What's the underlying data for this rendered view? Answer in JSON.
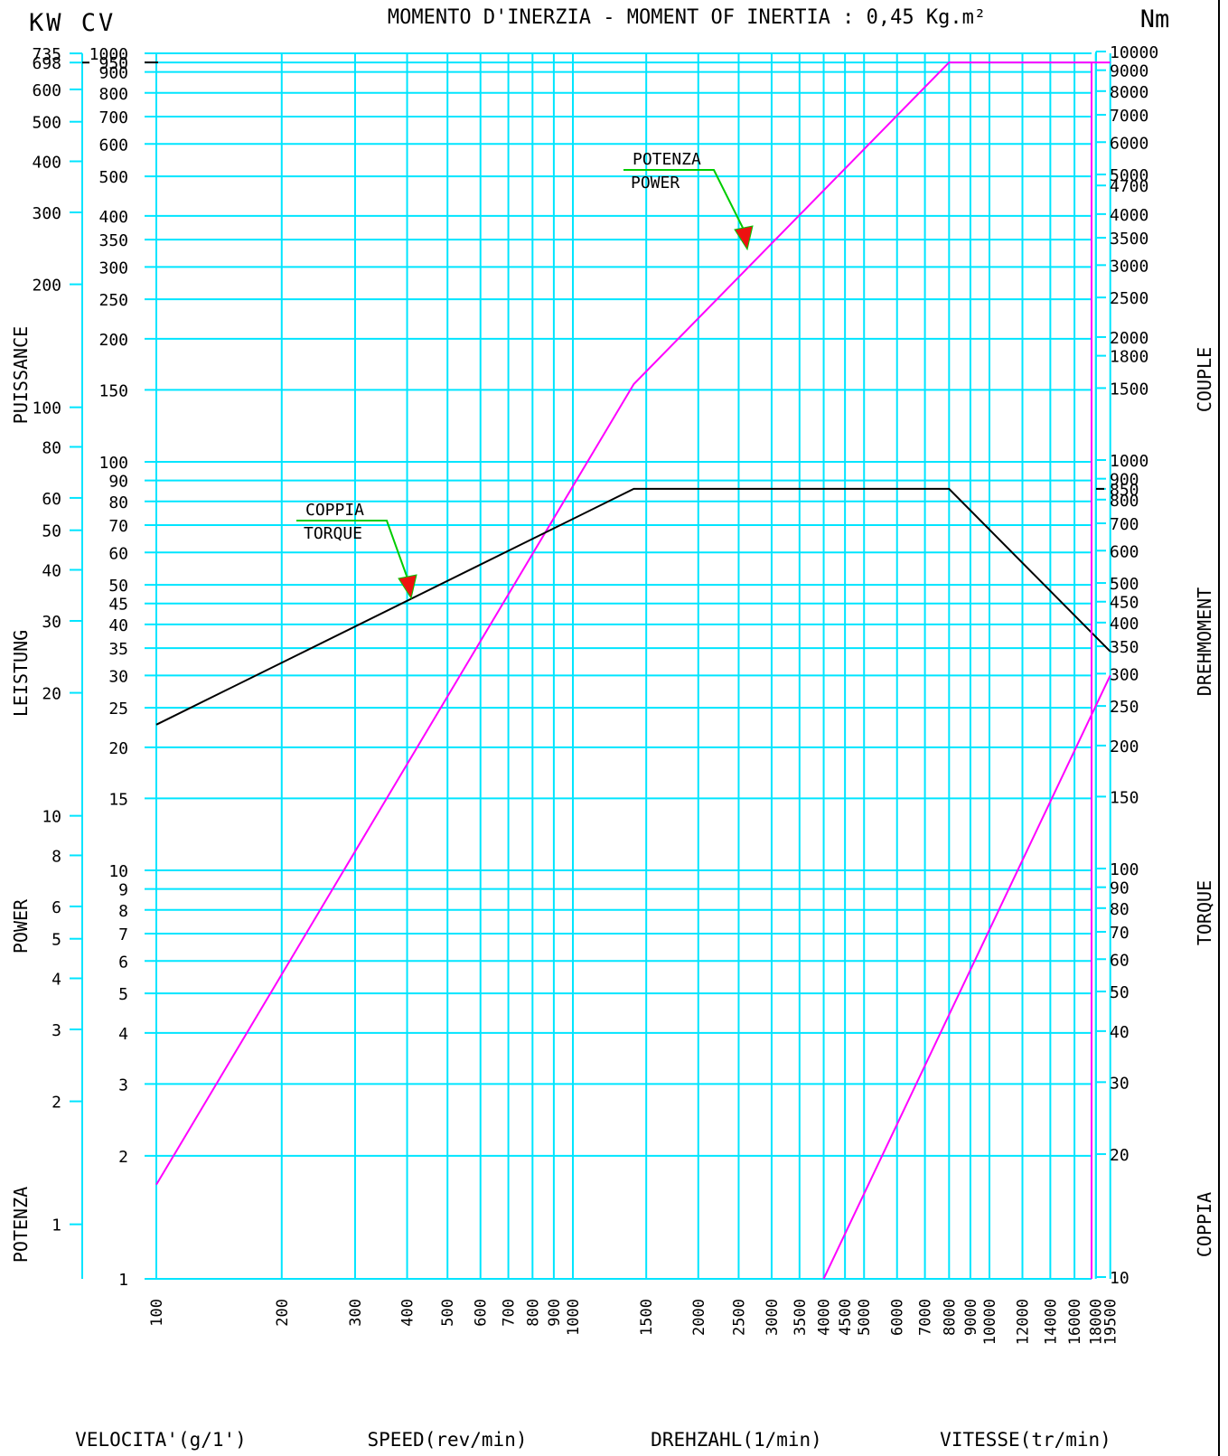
{
  "header": {
    "left_units": "KW CV",
    "title": "MOMENTO D'INERZIA - MOMENT OF INERTIA : 0,45 Kg.m²",
    "right_unit": "Nm"
  },
  "axis_names": {
    "left": [
      "POTENZA",
      "POWER",
      "LEISTUNG",
      "PUISSANCE"
    ],
    "right": [
      "COPPIA",
      "TORQUE",
      "DREHMOMENT",
      "COUPLE"
    ],
    "bottom": [
      "VELOCITA'(g/1')",
      "SPEED(rev/min)",
      "DREHZAHL(1/min)",
      "VITESSE(tr/min)"
    ]
  },
  "colors": {
    "grid": "#00e5ff",
    "power": "#ff00ff",
    "torque": "#000000",
    "callout": "#00cc00",
    "arrow_head": "#ee1111"
  },
  "chart_data": {
    "type": "line",
    "scale": "log-log",
    "x": {
      "range": [
        100,
        19500
      ],
      "tick_labels": [
        "100",
        "200",
        "300",
        "400",
        "500",
        "600",
        "700",
        "800",
        "900",
        "1000",
        "1500",
        "2000",
        "2500",
        "3000",
        "3500",
        "4000",
        "4500",
        "5000",
        "6000",
        "7000",
        "8000",
        "9000",
        "10000",
        "12000",
        "14000",
        "16000",
        "18000",
        "19500"
      ]
    },
    "kw_axis": {
      "ticks": [
        "1",
        "2",
        "3",
        "4",
        "5",
        "6",
        "8",
        "10",
        "20",
        "30",
        "40",
        "50",
        "60",
        "80",
        "100",
        "200",
        "300",
        "400",
        "500",
        "600",
        "698",
        "735"
      ]
    },
    "cv_axis": {
      "ticks": [
        "1",
        "2",
        "3",
        "4",
        "5",
        "6",
        "7",
        "8",
        "9",
        "10",
        "15",
        "20",
        "25",
        "30",
        "35",
        "40",
        "45",
        "50",
        "60",
        "70",
        "80",
        "90",
        "100",
        "150",
        "200",
        "250",
        "300",
        "350",
        "400",
        "500",
        "600",
        "700",
        "800",
        "900",
        "950",
        "1000"
      ]
    },
    "nm_axis": {
      "ticks": [
        "10",
        "20",
        "30",
        "40",
        "50",
        "60",
        "70",
        "80",
        "90",
        "100",
        "150",
        "200",
        "250",
        "300",
        "350",
        "400",
        "450",
        "500",
        "600",
        "700",
        "800",
        "850",
        "900",
        "1000",
        "1500",
        "1800",
        "2000",
        "2500",
        "3000",
        "3500",
        "4000",
        "4700",
        "5000",
        "6000",
        "7000",
        "8000",
        "9000",
        "10000"
      ]
    },
    "series": [
      {
        "name": "POTENZA POWER",
        "unit": "CV",
        "points": [
          [
            100,
            1.7
          ],
          [
            1400,
            155
          ],
          [
            8000,
            950
          ],
          [
            19500,
            950
          ]
        ]
      },
      {
        "name": "COPPIA TORQUE",
        "unit": "Nm",
        "points": [
          [
            100,
            225
          ],
          [
            1400,
            850
          ],
          [
            8000,
            850
          ],
          [
            19500,
            340
          ]
        ]
      },
      {
        "name": "",
        "unit": "CV",
        "points": [
          [
            4000,
            1
          ],
          [
            19500,
            30
          ]
        ]
      }
    ],
    "annotations": [
      {
        "line1": "POTENZA",
        "line2": "POWER"
      },
      {
        "line1": "COPPIA",
        "line2": "TORQUE"
      }
    ],
    "markers": [
      "698",
      "950",
      "850"
    ]
  }
}
